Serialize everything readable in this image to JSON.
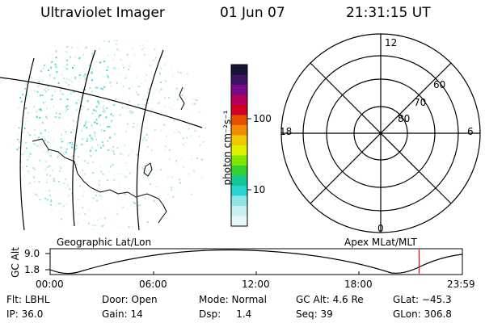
{
  "header": {
    "instrument": "Ultraviolet Imager",
    "date": "01 Jun 07",
    "time": "21:31:15 UT"
  },
  "geo_panel": {
    "label": "Geographic Lat/Lon"
  },
  "colorbar": {
    "unit_label": "photon cm⁻²s⁻¹",
    "scale": "log",
    "ticks": [
      "100",
      "10"
    ],
    "colors": [
      "#141432",
      "#3c1464",
      "#780a8c",
      "#b4005a",
      "#d20028",
      "#e65000",
      "#f08c00",
      "#f0c800",
      "#dcf000",
      "#82e600",
      "#32d232",
      "#14c896",
      "#28d2d2",
      "#8ce6e6",
      "#c8f0f0",
      "#e6f8f8"
    ]
  },
  "polar_panel": {
    "label": "Apex MLat/MLT",
    "mlt_labels": [
      "12",
      "18",
      "6",
      "0"
    ],
    "mlat_labels": [
      "60",
      "70",
      "80"
    ]
  },
  "altitude_plot": {
    "ylabel": "GC Alt",
    "yticks": [
      "9.0",
      "1.8"
    ],
    "xticks": [
      "00:00",
      "06:00",
      "12:00",
      "18:00",
      "23:59"
    ],
    "current_time_fraction": 0.895,
    "line_color": "#ff0000"
  },
  "status": {
    "row1": {
      "flt": "Flt: LBHL",
      "door": "Door: Open",
      "mode": "Mode: Normal",
      "gc_alt": "GC Alt: 4.6 Re",
      "glat": "GLat: −45.3"
    },
    "row2": {
      "ip": "IP: 36.0",
      "gain": "Gain: 14",
      "dsp": "Dsp:     1.4",
      "seq": "Seq: 39",
      "glon": "GLon: 306.8"
    }
  }
}
